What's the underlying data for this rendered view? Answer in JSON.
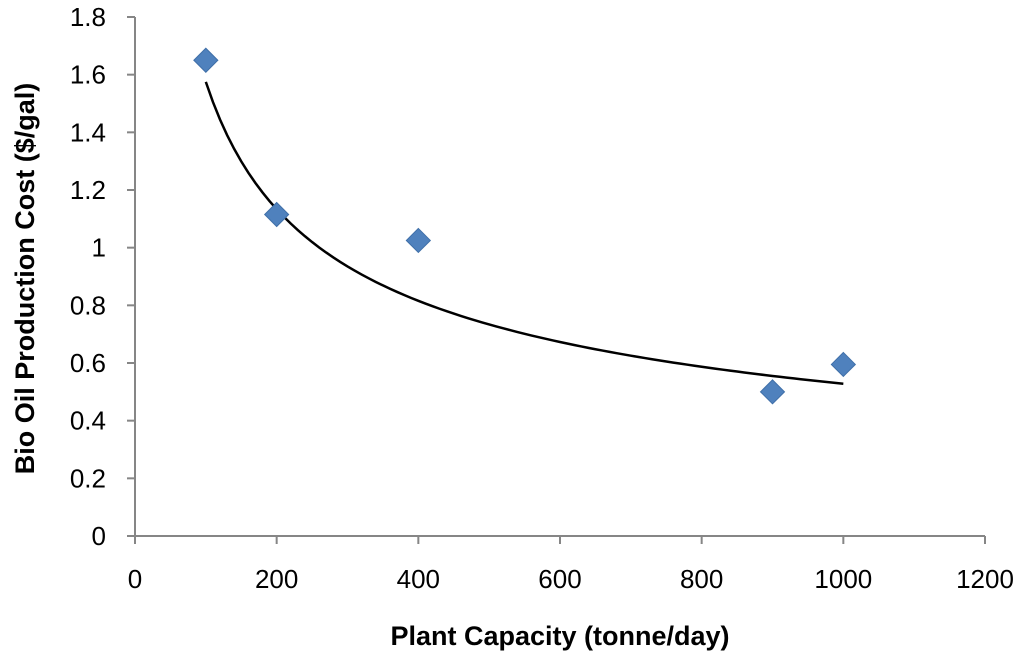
{
  "chart_data": {
    "type": "scatter",
    "title": "",
    "xlabel": "Plant Capacity (tonne/day)",
    "ylabel": "Bio Oil Production Cost ($/gal)",
    "xlim": [
      0,
      1200
    ],
    "ylim": [
      0,
      1.8
    ],
    "xticks": [
      0,
      200,
      400,
      600,
      800,
      1000,
      1200
    ],
    "xtick_labels": [
      "0",
      "200",
      "400",
      "600",
      "800",
      "1000",
      "1200"
    ],
    "yticks": [
      0,
      0.2,
      0.4,
      0.6,
      0.8,
      1,
      1.2,
      1.4,
      1.6,
      1.8
    ],
    "ytick_labels": [
      "0",
      "0.2",
      "0.4",
      "0.6",
      "0.8",
      "1",
      "1.2",
      "1.4",
      "1.6",
      "1.8"
    ],
    "grid": false,
    "series": [
      {
        "name": "Bio oil production cost",
        "marker": "diamond",
        "color": "#4F81BD",
        "x": [
          100,
          200,
          400,
          900,
          1000
        ],
        "y": [
          1.65,
          1.115,
          1.025,
          0.5,
          0.595
        ]
      }
    ],
    "trendline": {
      "type": "power",
      "color": "#000000",
      "x_start": 100,
      "x_end": 1000,
      "y_start": 1.575,
      "y_end": 0.528
    }
  }
}
